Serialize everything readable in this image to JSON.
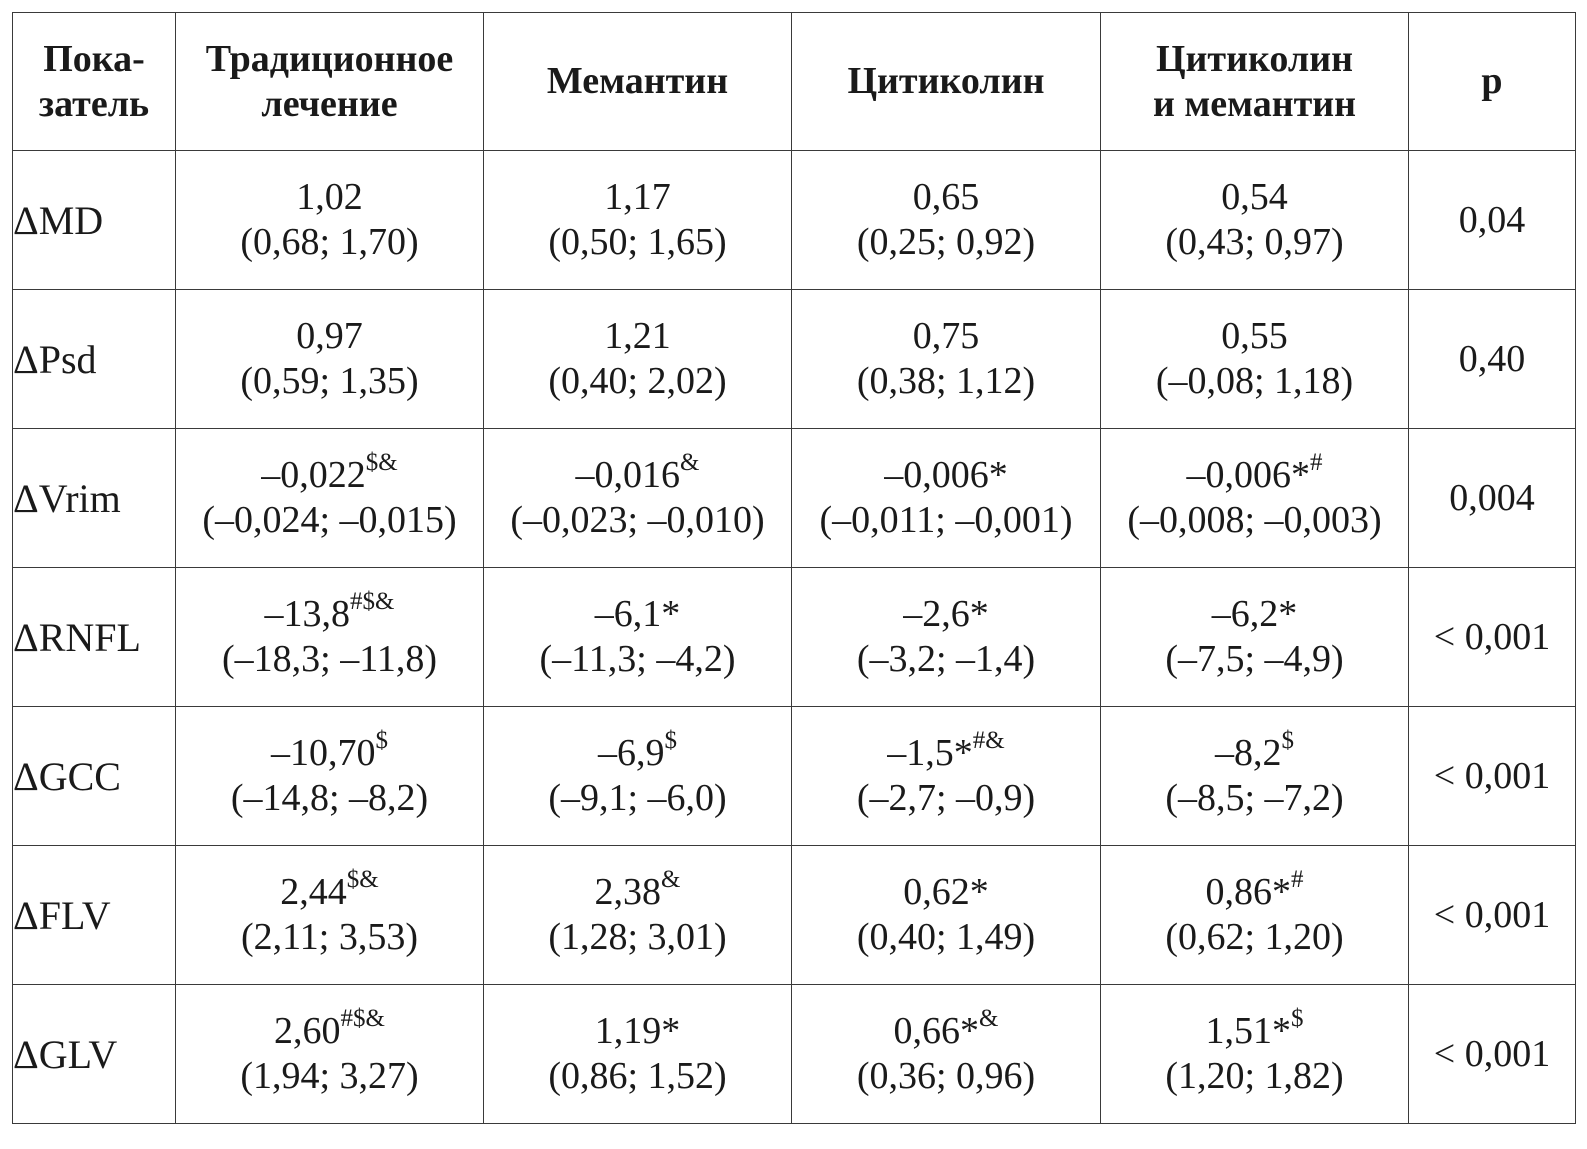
{
  "table": {
    "headers": [
      [
        "Пока-",
        "затель"
      ],
      [
        "Традиционное",
        "лечение"
      ],
      [
        "Мемантин"
      ],
      [
        "Цитиколин"
      ],
      [
        "Цитиколин",
        "и мемантин"
      ],
      [
        "p"
      ]
    ],
    "rows": [
      {
        "indicator": "ΔMD",
        "cells": [
          {
            "value": "1,02",
            "mark": "",
            "range": "(0,68; 1,70)"
          },
          {
            "value": "1,17",
            "mark": "",
            "range": "(0,50; 1,65)"
          },
          {
            "value": "0,65",
            "mark": "",
            "range": "(0,25; 0,92)"
          },
          {
            "value": "0,54",
            "mark": "",
            "range": "(0,43; 0,97)"
          }
        ],
        "p": "0,04"
      },
      {
        "indicator": "ΔPsd",
        "cells": [
          {
            "value": "0,97",
            "mark": "",
            "range": "(0,59; 1,35)"
          },
          {
            "value": "1,21",
            "mark": "",
            "range": "(0,40; 2,02)"
          },
          {
            "value": "0,75",
            "mark": "",
            "range": "(0,38; 1,12)"
          },
          {
            "value": "0,55",
            "mark": "",
            "range": "(–0,08; 1,18)"
          }
        ],
        "p": "0,40"
      },
      {
        "indicator": "ΔVrim",
        "cells": [
          {
            "value": "–0,022",
            "mark": "$&",
            "range": "(–0,024; –0,015)"
          },
          {
            "value": "–0,016",
            "mark": "&",
            "range": "(–0,023; –0,010)"
          },
          {
            "value": "–0,006*",
            "mark": "",
            "range": "(–0,011; –0,001)"
          },
          {
            "value": "–0,006*",
            "mark": "#",
            "range": "(–0,008; –0,003)"
          }
        ],
        "p": "0,004"
      },
      {
        "indicator": "ΔRNFL",
        "cells": [
          {
            "value": "–13,8",
            "mark": "#$&",
            "range": "(–18,3; –11,8)"
          },
          {
            "value": "–6,1*",
            "mark": "",
            "range": "(–11,3; –4,2)"
          },
          {
            "value": "–2,6*",
            "mark": "",
            "range": "(–3,2; –1,4)"
          },
          {
            "value": "–6,2*",
            "mark": "",
            "range": "(–7,5; –4,9)"
          }
        ],
        "p": "< 0,001"
      },
      {
        "indicator": "ΔGCC",
        "cells": [
          {
            "value": "–10,70",
            "mark": "$",
            "range": "(–14,8; –8,2)"
          },
          {
            "value": "–6,9",
            "mark": "$",
            "range": "(–9,1; –6,0)"
          },
          {
            "value": "–1,5*",
            "mark": "#&",
            "range": "(–2,7; –0,9)"
          },
          {
            "value": "–8,2",
            "mark": "$",
            "range": "(–8,5; –7,2)"
          }
        ],
        "p": "< 0,001"
      },
      {
        "indicator": "ΔFLV",
        "cells": [
          {
            "value": "2,44",
            "mark": "$&",
            "range": "(2,11; 3,53)"
          },
          {
            "value": "2,38",
            "mark": "&",
            "range": "(1,28; 3,01)"
          },
          {
            "value": "0,62*",
            "mark": "",
            "range": "(0,40; 1,49)"
          },
          {
            "value": "0,86*",
            "mark": "#",
            "range": "(0,62; 1,20)"
          }
        ],
        "p": "< 0,001"
      },
      {
        "indicator": "ΔGLV",
        "cells": [
          {
            "value": "2,60",
            "mark": "#$&",
            "range": "(1,94; 3,27)"
          },
          {
            "value": "1,19*",
            "mark": "",
            "range": "(0,86; 1,52)"
          },
          {
            "value": "0,66*",
            "mark": "&",
            "range": "(0,36; 0,96)"
          },
          {
            "value": "1,51*",
            "mark": "$",
            "range": "(1,20; 1,82)"
          }
        ],
        "p": "< 0,001"
      }
    ]
  }
}
